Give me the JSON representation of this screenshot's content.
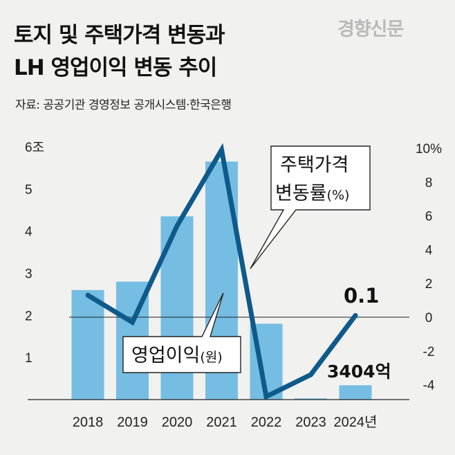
{
  "watermark": "경향신문",
  "title_line1": "토지 및 주택가격 변동과",
  "title_line2": "LH 영업이익 변동 추이",
  "source": "자료: 공공기관 경영정보 공개시스템·한국은행",
  "colors": {
    "bar": "#75bde2",
    "line": "#0e5a8a",
    "background": "#f1f1f0"
  },
  "chart_data": {
    "type": "bar",
    "categories": [
      "2018",
      "2019",
      "2020",
      "2021",
      "2022",
      "2023",
      "2024년"
    ],
    "left_axis": {
      "unit_label": "6조",
      "ticks": [
        "1",
        "2",
        "3",
        "4",
        "5",
        "6조"
      ],
      "ylim": [
        0,
        6
      ]
    },
    "right_axis": {
      "ticks": [
        "10%",
        "8",
        "6",
        "4",
        "2",
        "0",
        "-2",
        "-4"
      ],
      "ylim": [
        -5,
        10
      ]
    },
    "series": [
      {
        "name": "영업이익(원)",
        "type": "bar",
        "axis": "left",
        "unit": "조원",
        "values": [
          2.6,
          2.8,
          4.35,
          5.65,
          1.8,
          0.03,
          0.34
        ]
      },
      {
        "name": "주택가격 변동률(%)",
        "type": "line",
        "axis": "right",
        "unit": "%",
        "values": [
          1.3,
          -0.3,
          5.4,
          9.9,
          -4.7,
          -3.4,
          0.1
        ]
      }
    ],
    "annotations": {
      "line_2024": "0.1",
      "bar_2024": "3404억"
    },
    "callouts": {
      "line_label_1": "주택가격",
      "line_label_2": "변동률",
      "line_label_unit": "(%)",
      "bar_label": "영업이익",
      "bar_label_unit": "(원)"
    },
    "grid": false
  }
}
